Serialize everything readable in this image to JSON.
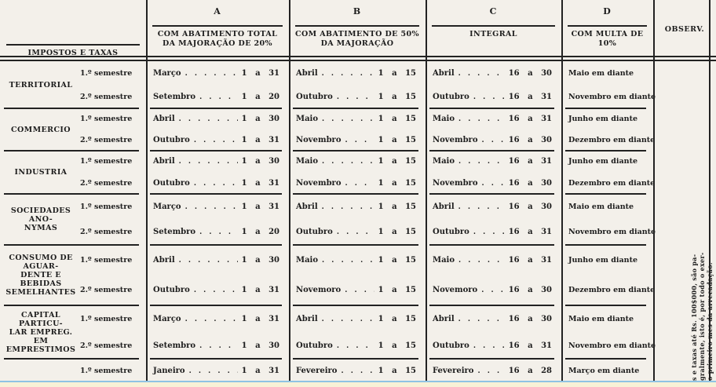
{
  "header": {
    "labels_col_title": "IMPOSTOS E TAXAS",
    "observ_label": "OBSERV.",
    "columns": [
      {
        "letter": "A",
        "title": "COM ABATIMENTO TOTAL DA MAJORAÇÃO DE 20%"
      },
      {
        "letter": "B",
        "title": "COM ABATIMENTO DE 50% DA MAJORAÇÃO"
      },
      {
        "letter": "C",
        "title": "INTEGRAL"
      },
      {
        "letter": "D",
        "title": "COM MULTA DE 10%"
      }
    ]
  },
  "rows": [
    {
      "category_lines": [
        "TERRITORIAL"
      ],
      "semesters": [
        {
          "label": "1.º semestre",
          "a": {
            "month": "Março",
            "range": "1 a 31"
          },
          "b": {
            "month": "Abril",
            "range": "1 a 15"
          },
          "c": {
            "month": "Abril",
            "range": "16 a 30"
          },
          "d": "Maio em diante"
        },
        {
          "label": "2.º semestre",
          "a": {
            "month": "Setembro",
            "range": "1 a 20"
          },
          "b": {
            "month": "Outubro",
            "range": "1 a 15"
          },
          "c": {
            "month": "Outubro",
            "range": "16 a 31"
          },
          "d": "Novembro em diante"
        }
      ]
    },
    {
      "category_lines": [
        "COMMERCIO"
      ],
      "semesters": [
        {
          "label": "1.º semestre",
          "a": {
            "month": "Abril",
            "range": "1 a 30"
          },
          "b": {
            "month": "Maio",
            "range": "1 a 15"
          },
          "c": {
            "month": "Maio",
            "range": "16 a 31"
          },
          "d": "Junho em diante"
        },
        {
          "label": "2.º semestre",
          "a": {
            "month": "Outubro",
            "range": "1 a 31"
          },
          "b": {
            "month": "Novembro",
            "range": "1 a 15"
          },
          "c": {
            "month": "Novembro",
            "range": "16 a 30"
          },
          "d": "Dezembro em diante"
        }
      ]
    },
    {
      "category_lines": [
        "INDUSTRIA"
      ],
      "semesters": [
        {
          "label": "1.º semestre",
          "a": {
            "month": "Abril",
            "range": "1 a 30"
          },
          "b": {
            "month": "Maio",
            "range": "1 a 15"
          },
          "c": {
            "month": "Maio",
            "range": "16 a 31"
          },
          "d": "Junho em diante"
        },
        {
          "label": "2.º semestre",
          "a": {
            "month": "Outubro",
            "range": "1 a 31"
          },
          "b": {
            "month": "Novembro",
            "range": "1 a 15"
          },
          "c": {
            "month": "Novembro",
            "range": "16 a 30"
          },
          "d": "Dezembro em diante"
        }
      ]
    },
    {
      "category_lines": [
        "SOCIEDADES ANO-",
        "NYMAS"
      ],
      "semesters": [
        {
          "label": "1.º semestre",
          "a": {
            "month": "Março",
            "range": "1 a 31"
          },
          "b": {
            "month": "Abril",
            "range": "1 a 15"
          },
          "c": {
            "month": "Abril",
            "range": "16 a 30"
          },
          "d": "Maio em diante"
        },
        {
          "label": "2.º semestre",
          "a": {
            "month": "Setembro",
            "range": "1 a 20"
          },
          "b": {
            "month": "Outubro",
            "range": "1 a 15"
          },
          "c": {
            "month": "Outubro",
            "range": "16 a 31"
          },
          "d": "Novembro em diante"
        }
      ]
    },
    {
      "category_lines": [
        "CONSUMO DE AGUAR-",
        "DENTE E BEBIDAS",
        "SEMELHANTES"
      ],
      "semesters": [
        {
          "label": "1.º semestre",
          "a": {
            "month": "Abril",
            "range": "1 a 30"
          },
          "b": {
            "month": "Maio",
            "range": "1 a 15"
          },
          "c": {
            "month": "Maio",
            "range": "16 a 31"
          },
          "d": "Junho em diante"
        },
        {
          "label": "2.º semestre",
          "a": {
            "month": "Outubro",
            "range": "1 a 31"
          },
          "b": {
            "month": "Novemoro",
            "range": "1 a 15"
          },
          "c": {
            "month": "Novemoro",
            "range": "16 a 30"
          },
          "d": "Dezembro em diante"
        }
      ]
    },
    {
      "category_lines": [
        "CAPITAL PARTICU-",
        "LAR EMPREG. EM",
        "EMPRESTIMOS"
      ],
      "semesters": [
        {
          "label": "1.º semestre",
          "a": {
            "month": "Março",
            "range": "1 a 31"
          },
          "b": {
            "month": "Abril",
            "range": "1 a 15"
          },
          "c": {
            "month": "Abril",
            "range": "16 a 30"
          },
          "d": "Maio em diante"
        },
        {
          "label": "2.º semestre",
          "a": {
            "month": "Setembro",
            "range": "1 a 30"
          },
          "b": {
            "month": "Outubro",
            "range": "1 a 15"
          },
          "c": {
            "month": "Outubro",
            "range": "16 a 31"
          },
          "d": "Novembro em diante"
        }
      ]
    },
    {
      "category_lines": [],
      "semesters": [
        {
          "label": "1.º semestre",
          "a": {
            "month": "Janeiro",
            "range": "1 a 31"
          },
          "b": {
            "month": "Fevereiro",
            "range": "1 a 15"
          },
          "c": {
            "month": "Fevereiro",
            "range": "16 a 28"
          },
          "d": "Março em diante"
        }
      ]
    }
  ],
  "side_note_lines": [
    "s e taxas até Rs. 100$000, são pa-",
    "gralmente, isto é, por todo o exer-",
    "o primeiro mes da arrecadação."
  ],
  "colors": {
    "paper": "#f3f0ea",
    "ink": "#1d1d1d",
    "rule": "#222222",
    "blue": "#8fc3e4",
    "cream": "#f8f1d6"
  }
}
